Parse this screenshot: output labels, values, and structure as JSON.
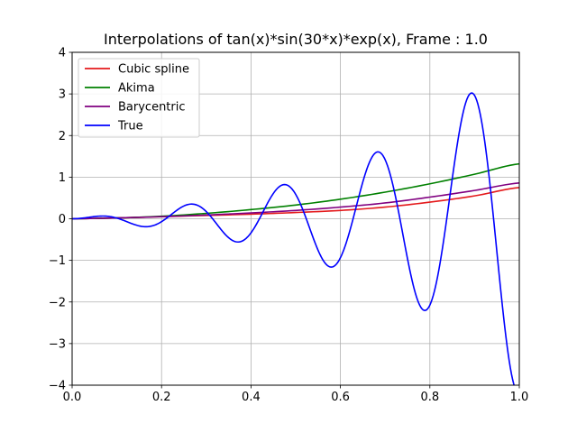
{
  "chart_data": {
    "type": "line",
    "title": "Interpolations of tan(x)*sin(30*x)*exp(x), Frame : 1.0",
    "xlabel": "",
    "ylabel": "",
    "xlim": [
      0.0,
      1.0
    ],
    "ylim": [
      -4,
      4
    ],
    "x_ticks": [
      "0.0",
      "0.2",
      "0.4",
      "0.6",
      "0.8",
      "1.0"
    ],
    "y_ticks": [
      "4",
      "3",
      "2",
      "1",
      "0",
      "−1",
      "−2",
      "−3",
      "−4"
    ],
    "grid": true,
    "legend_position": "top-left",
    "series": [
      {
        "name": "Cubic spline",
        "color": "#e41a1c",
        "x": [
          0.0,
          0.1,
          0.2,
          0.3,
          0.4,
          0.5,
          0.6,
          0.7,
          0.8,
          0.9,
          1.0
        ],
        "y": [
          0.0,
          0.02,
          0.05,
          0.08,
          0.11,
          0.15,
          0.2,
          0.28,
          0.4,
          0.55,
          0.75
        ]
      },
      {
        "name": "Akima",
        "color": "#008000",
        "x": [
          0.0,
          0.1,
          0.2,
          0.3,
          0.4,
          0.5,
          0.6,
          0.7,
          0.8,
          0.9,
          1.0
        ],
        "y": [
          0.0,
          0.02,
          0.06,
          0.13,
          0.22,
          0.33,
          0.47,
          0.64,
          0.84,
          1.07,
          1.32
        ]
      },
      {
        "name": "Barycentric",
        "color": "#800080",
        "x": [
          0.0,
          0.1,
          0.2,
          0.3,
          0.4,
          0.5,
          0.6,
          0.7,
          0.8,
          0.9,
          1.0
        ],
        "y": [
          0.0,
          0.02,
          0.05,
          0.09,
          0.14,
          0.2,
          0.28,
          0.38,
          0.52,
          0.68,
          0.86
        ]
      },
      {
        "name": "True",
        "color": "#0000ff",
        "function": "tan(x)*sin(30*x)*exp(x)",
        "x_range": [
          0.0,
          1.0
        ],
        "samples": 400
      }
    ]
  }
}
